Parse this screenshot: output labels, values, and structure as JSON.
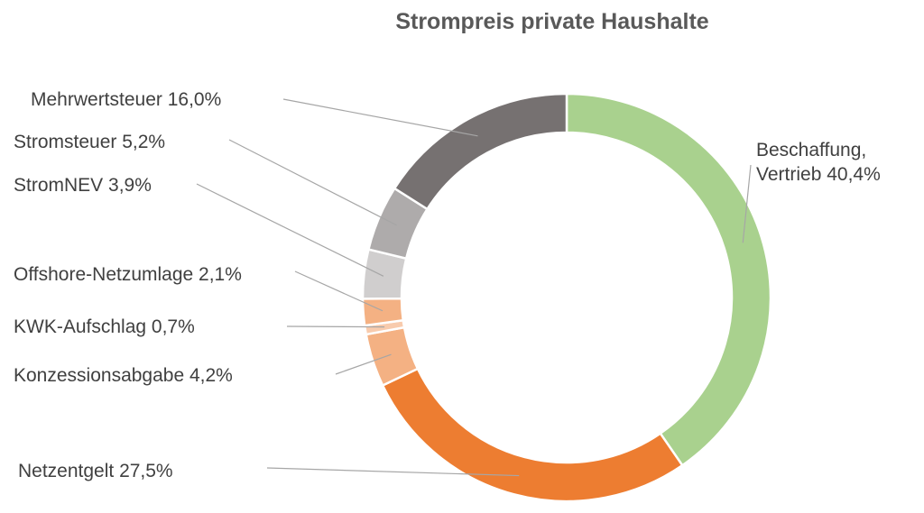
{
  "chart_data": {
    "type": "pie",
    "title": "Strompreis private Haushalte",
    "slices": [
      {
        "label": "Beschaffung, Vertrieb",
        "display_value": "40,4%",
        "value": 40.4,
        "color": "#a9d18e"
      },
      {
        "label": "Netzentgelt",
        "display_value": "27,5%",
        "value": 27.5,
        "color": "#ed7d31"
      },
      {
        "label": "Konzessionsabgabe",
        "display_value": "4,2%",
        "value": 4.2,
        "color": "#f4b183"
      },
      {
        "label": "KWK-Aufschlag",
        "display_value": "0,7%",
        "value": 0.7,
        "color": "#f8cbad"
      },
      {
        "label": "Offshore-Netzumlage",
        "display_value": "2,1%",
        "value": 2.1,
        "color": "#f4b183"
      },
      {
        "label": "StromNEV",
        "display_value": "3,9%",
        "value": 3.9,
        "color": "#d0cece"
      },
      {
        "label": "Stromsteuer",
        "display_value": "5,2%",
        "value": 5.2,
        "color": "#aeabab"
      },
      {
        "label": "Mehrwertsteuer",
        "display_value": "16,0%",
        "value": 16.0,
        "color": "#767171"
      }
    ]
  }
}
